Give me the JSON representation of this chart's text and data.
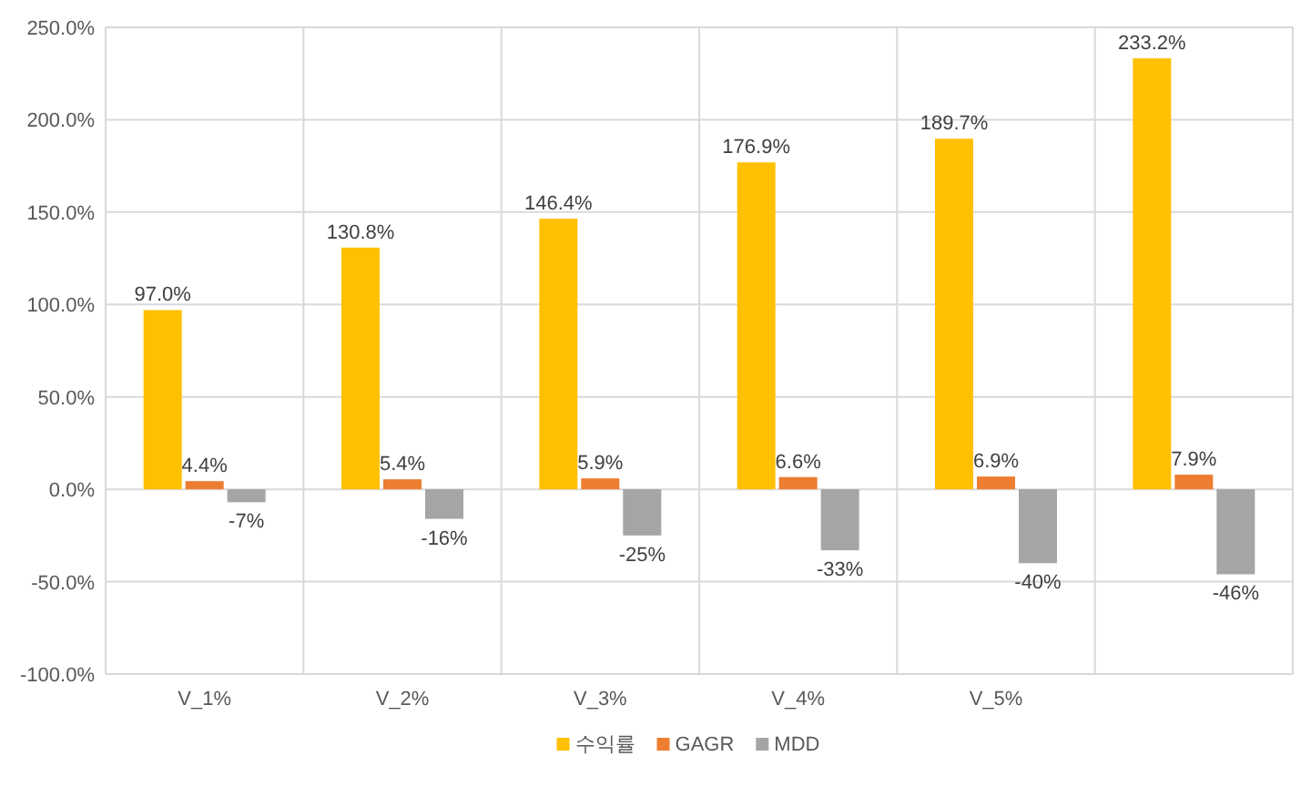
{
  "chart_data": {
    "type": "bar",
    "categories": [
      "V_1%",
      "V_2%",
      "V_3%",
      "V_4%",
      "V_5%",
      null
    ],
    "series": [
      {
        "name": "수익률",
        "color": "#ffc000",
        "values": [
          97.0,
          130.8,
          146.4,
          176.9,
          189.7,
          233.2
        ],
        "value_labels": [
          "97.0%",
          "130.8%",
          "146.4%",
          "176.9%",
          "189.7%",
          "233.2%"
        ]
      },
      {
        "name": "GAGR",
        "color": "#ed7d31",
        "values": [
          4.4,
          5.4,
          5.9,
          6.6,
          6.9,
          7.9
        ],
        "value_labels": [
          "4.4%",
          "5.4%",
          "5.9%",
          "6.6%",
          "6.9%",
          "7.9%"
        ]
      },
      {
        "name": "MDD",
        "color": "#a5a5a5",
        "values": [
          -7,
          -16,
          -25,
          -33,
          -40,
          -46
        ],
        "value_labels": [
          "-7%",
          "-16%",
          "-25%",
          "-33%",
          "-40%",
          "-46%"
        ]
      }
    ],
    "ylim": [
      -100,
      250
    ],
    "yticks": [
      {
        "value": -100,
        "label": "-100.0%"
      },
      {
        "value": -50,
        "label": "-50.0%"
      },
      {
        "value": 0,
        "label": "0.0%"
      },
      {
        "value": 50,
        "label": "50.0%"
      },
      {
        "value": 100,
        "label": "100.0%"
      },
      {
        "value": 150,
        "label": "150.0%"
      },
      {
        "value": 200,
        "label": "200.0%"
      },
      {
        "value": 250,
        "label": "250.0%"
      }
    ],
    "grid": true,
    "legend": "bottom"
  }
}
